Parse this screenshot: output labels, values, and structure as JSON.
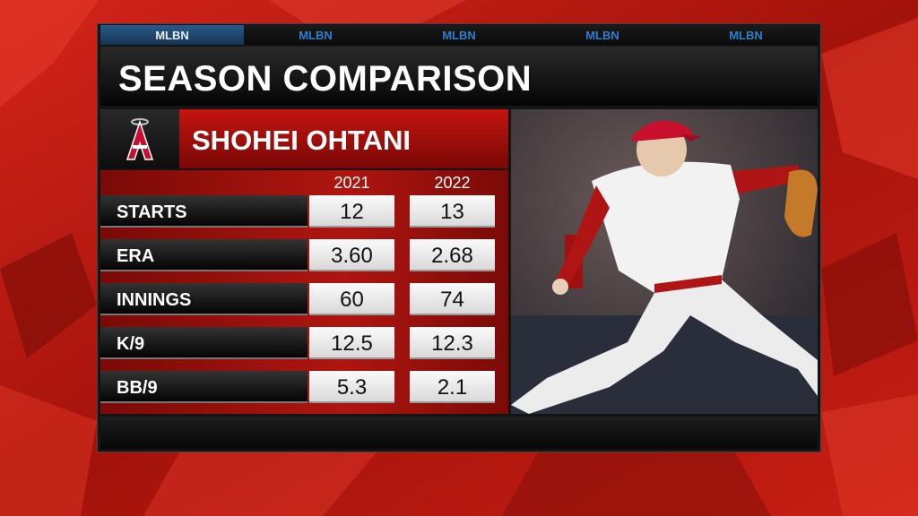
{
  "network_tabs": [
    "MLBN",
    "MLBN",
    "MLBN",
    "MLBN",
    "MLBN"
  ],
  "header": {
    "title": "SEASON COMPARISON",
    "player": "SHOHEI OHTANI"
  },
  "table": {
    "columns": [
      "2021",
      "2022"
    ],
    "rows": [
      [
        "STARTS",
        "12",
        "13"
      ],
      [
        "ERA",
        "3.60",
        "2.68"
      ],
      [
        "INNINGS",
        "60",
        "74"
      ],
      [
        "K/9",
        "12.5",
        "12.3"
      ],
      [
        "BB/9",
        "5.3",
        "2.1"
      ]
    ]
  }
}
